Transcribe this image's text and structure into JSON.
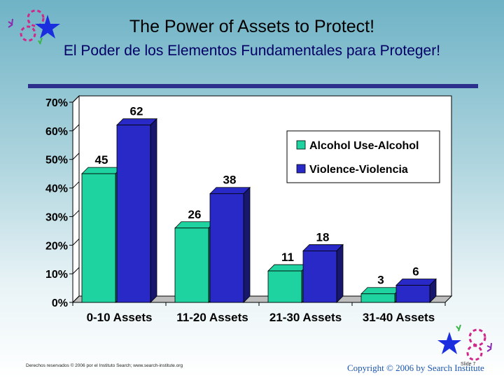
{
  "slide": {
    "title": "The Power of Assets to Protect!",
    "subtitle": "El Poder de los Elementos Fundamentales para Proteger!",
    "footer_left": "Derechos reservados © 2006 por el Instituto Search; www.search-institute.org",
    "copyright": "Copyright © 2006 by Search Institute",
    "slide_number": "Slide 7",
    "accent_color": "#2d2f8c",
    "decor_icons": [
      "star-icon",
      "dashed-ring-icon"
    ]
  },
  "chart_data": {
    "type": "bar",
    "categories": [
      "0-10 Assets",
      "11-20 Assets",
      "21-30 Assets",
      "31-40 Assets"
    ],
    "series": [
      {
        "name": "Alcohol Use-Alcohol",
        "values": [
          45,
          26,
          11,
          3
        ],
        "color": "#1fd3a0"
      },
      {
        "name": "Violence-Violencia",
        "values": [
          62,
          38,
          18,
          6
        ],
        "color": "#2929c8"
      }
    ],
    "yticks": [
      "0%",
      "10%",
      "20%",
      "30%",
      "40%",
      "50%",
      "60%",
      "70%"
    ],
    "ylim": [
      0,
      70
    ],
    "grid": false,
    "legend_position": "top-right",
    "style": "3d"
  }
}
